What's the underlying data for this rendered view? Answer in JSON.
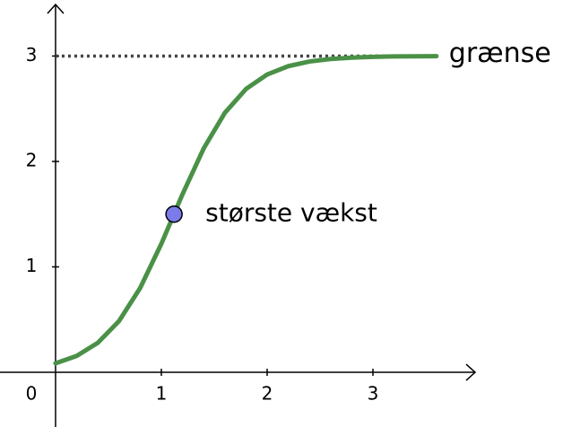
{
  "chart_data": {
    "type": "line",
    "xlim": [
      -0.525,
      3.966
    ],
    "ylim": [
      -0.519,
      3.489
    ],
    "xticks": [
      0,
      1,
      2,
      3
    ],
    "yticks": [
      1,
      2,
      3
    ],
    "series": [
      {
        "color": "#4a9147",
        "x": [
          0,
          0.2,
          0.4,
          0.6,
          0.8,
          1.0,
          1.2,
          1.4,
          1.6,
          1.8,
          2.0,
          2.2,
          2.4,
          2.6,
          2.8,
          3.0,
          3.2,
          3.4,
          3.6
        ],
        "values": [
          0.085,
          0.155,
          0.28,
          0.486,
          0.8,
          1.219,
          1.689,
          2.123,
          2.461,
          2.687,
          2.825,
          2.904,
          2.948,
          2.972,
          2.985,
          2.992,
          2.996,
          2.998,
          2.999
        ]
      }
    ],
    "asymptote": {
      "y": 3,
      "x": [
        0,
        3.6
      ],
      "label": "grænse",
      "color": "#444444"
    },
    "point": {
      "x": 1.12,
      "y": 1.5,
      "label": "største vækst",
      "color": "#7b7bea"
    }
  }
}
